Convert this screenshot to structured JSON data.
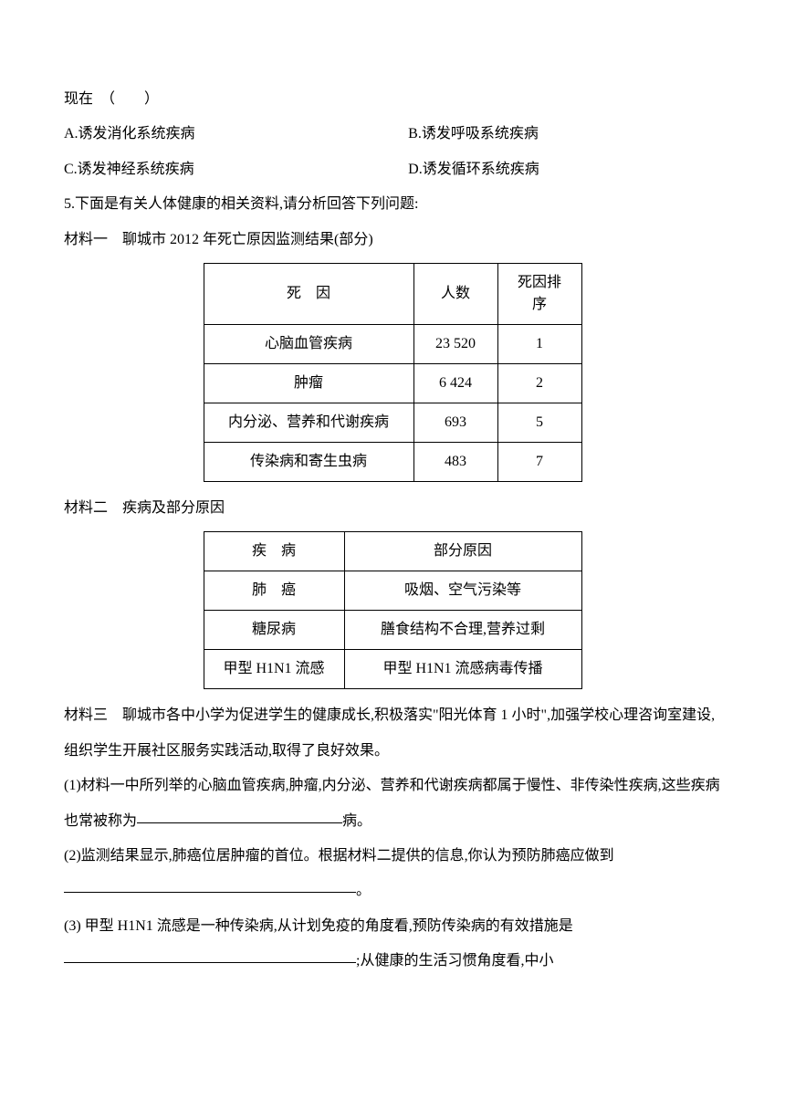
{
  "q4": {
    "stem_line": "现在　（　　）",
    "optA": "A.诱发消化系统疾病",
    "optB": "B.诱发呼吸系统疾病",
    "optC": "C.诱发神经系统疾病",
    "optD": "D.诱发循环系统疾病"
  },
  "q5": {
    "stem": "5.下面是有关人体健康的相关资料,请分析回答下列问题:",
    "mat1_title": "材料一　聊城市 2012 年死亡原因监测结果(部分)",
    "mat2_title": "材料二　疾病及部分原因",
    "mat3_text": "材料三　聊城市各中小学为促进学生的健康成长,积极落实\"阳光体育 1 小时\",加强学校心理咨询室建设,组织学生开展社区服务实践活动,取得了良好效果。",
    "sub1_a": "(1)材料一中所列举的心脑血管疾病,肿瘤,内分泌、营养和代谢疾病都属于慢性、非传染性疾病,这些疾病也常被称为",
    "sub1_b": "病。",
    "sub2_a": "(2)监测结果显示,肺癌位居肿瘤的首位。根据材料二提供的信息,你认为预防肺癌应做到",
    "sub2_b": "。",
    "sub3_a": "(3) 甲型 H1N1 流感是一种传染病,从计划免疫的角度看,预防传染病的有效措施是",
    "sub3_b": ";从健康的生活习惯角度看,中小"
  },
  "table1": {
    "header": {
      "c1": "死　因",
      "c2": "人数",
      "c3": "死因排序"
    },
    "rows": [
      {
        "c1": "心脑血管疾病",
        "c2": "23 520",
        "c3": "1"
      },
      {
        "c1": "肿瘤",
        "c2": "6 424",
        "c3": "2"
      },
      {
        "c1": "内分泌、营养和代谢疾病",
        "c2": "693",
        "c3": "5"
      },
      {
        "c1": "传染病和寄生虫病",
        "c2": "483",
        "c3": "7"
      }
    ]
  },
  "table2": {
    "header": {
      "c1": "疾　病",
      "c2": "部分原因"
    },
    "rows": [
      {
        "c1": "肺　癌",
        "c2": "吸烟、空气污染等"
      },
      {
        "c1": "糖尿病",
        "c2": "膳食结构不合理,营养过剩"
      },
      {
        "c1": "甲型 H1N1 流感",
        "c2": "甲型 H1N1 流感病毒传播"
      }
    ]
  },
  "style": {
    "blank_width_1": "225px",
    "blank_width_2": "320px",
    "blank_width_3": "320px"
  }
}
